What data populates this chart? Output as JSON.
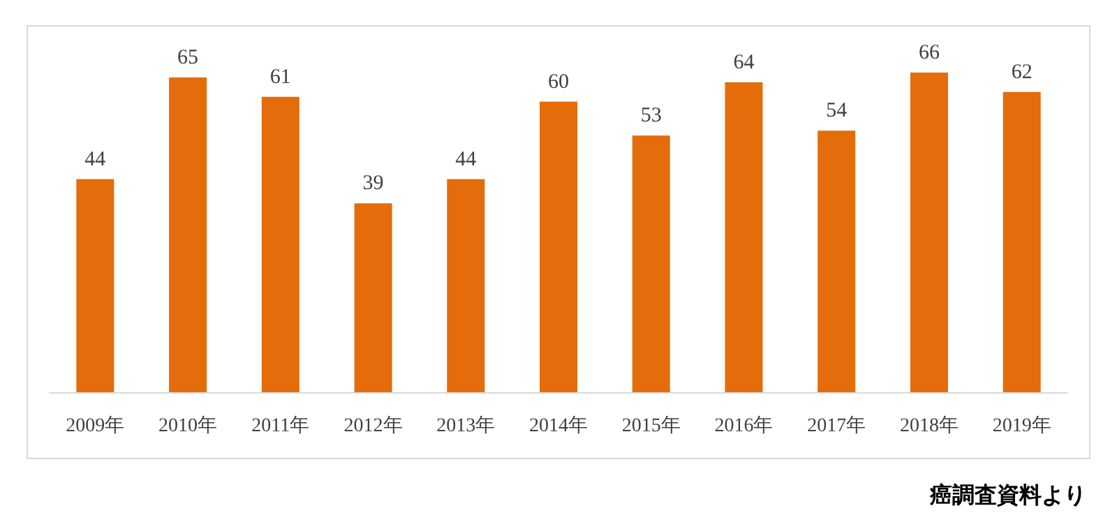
{
  "chart_data": {
    "type": "bar",
    "categories": [
      "2009年",
      "2010年",
      "2011年",
      "2012年",
      "2013年",
      "2014年",
      "2015年",
      "2016年",
      "2017年",
      "2018年",
      "2019年"
    ],
    "values": [
      44,
      65,
      61,
      39,
      44,
      60,
      53,
      64,
      54,
      66,
      62
    ],
    "color": "#e46c0a",
    "data_labels": true,
    "annotations": [
      "癌調査資料より"
    ]
  }
}
